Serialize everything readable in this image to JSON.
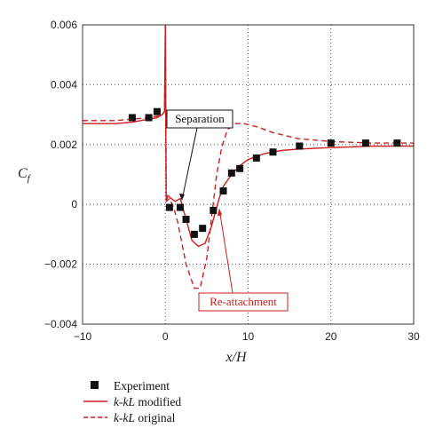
{
  "chart_data": {
    "type": "line",
    "xlabel": "x/H",
    "ylabel": "C",
    "ylabel_sub": "f",
    "xlim": [
      -10,
      30
    ],
    "ylim": [
      -0.004,
      0.006
    ],
    "xticks": [
      -10,
      0,
      10,
      20,
      30
    ],
    "yticks": [
      -0.004,
      -0.002,
      0,
      0.002,
      0.004,
      0.006
    ],
    "xtick_labels": [
      "−10",
      "0",
      "10",
      "20",
      "30"
    ],
    "ytick_labels": [
      "−0.004",
      "−0.002",
      "0",
      "0.002",
      "0.004",
      "0.006"
    ],
    "grid": "dotted",
    "series": [
      {
        "name": "Experiment",
        "kind": "markers",
        "x": [
          -4,
          -2,
          -1,
          0.5,
          1.8,
          2.5,
          3.5,
          4.5,
          5.8,
          7,
          8,
          9,
          11,
          13,
          16.2,
          20,
          24.2,
          28
        ],
        "y": [
          0.0029,
          0.0029,
          0.0031,
          -0.0001,
          -0.0001,
          -0.0005,
          -0.001,
          -0.0008,
          -0.0002,
          0.00045,
          0.00105,
          0.0012,
          0.00155,
          0.00175,
          0.00195,
          0.00205,
          0.00205,
          0.00205
        ]
      },
      {
        "name": "k-kL modified",
        "kind": "solid",
        "color": "#cc1f1f",
        "x": [
          -10,
          -6,
          -4,
          -2,
          -1,
          -0.4,
          -0.1,
          0,
          0.1,
          0.3,
          0.7,
          1.2,
          1.8,
          2.5,
          3.2,
          4,
          4.8,
          5.5,
          6,
          6.5,
          7,
          8,
          9,
          10,
          12,
          14,
          16,
          20,
          25,
          30
        ],
        "y": [
          0.0027,
          0.0027,
          0.00275,
          0.00285,
          0.0029,
          0.003,
          0.0031,
          0.006,
          0.0001,
          0.0003,
          0.0002,
          0.0001,
          0.0002,
          -0.0005,
          -0.0012,
          -0.0014,
          -0.0013,
          -0.0008,
          -0.0003,
          0.0002,
          0.0006,
          0.001,
          0.0013,
          0.0015,
          0.0017,
          0.0018,
          0.00185,
          0.0019,
          0.00195,
          0.00195
        ]
      },
      {
        "name": "k-kL original",
        "kind": "dashed",
        "color": "#cc1f1f",
        "x": [
          -10,
          -6,
          -4,
          -2,
          -1,
          -0.4,
          -0.1,
          0,
          0.1,
          0.5,
          1,
          1.5,
          2.5,
          3.5,
          4.2,
          5,
          5.6,
          6.2,
          6.8,
          7.5,
          8.5,
          9.5,
          11,
          13,
          16,
          20,
          25,
          30
        ],
        "y": [
          0.0028,
          0.0028,
          0.00285,
          0.0029,
          0.00295,
          0.003,
          0.0031,
          0.006,
          0.0001,
          0.0002,
          -0.0001,
          -0.0006,
          -0.002,
          -0.0028,
          -0.0028,
          -0.0018,
          -0.0004,
          0.001,
          0.0019,
          0.0025,
          0.0027,
          0.0027,
          0.0026,
          0.0024,
          0.0022,
          0.0021,
          0.00205,
          0.00205
        ]
      }
    ],
    "annotations": [
      {
        "text": "Separation",
        "style": "black-box",
        "target": [
          2,
          0.0001
        ]
      },
      {
        "text": "Re-attachment",
        "style": "red-box",
        "target": [
          6.3,
          0.0
        ]
      }
    ],
    "legend": {
      "placement": "below",
      "entries": [
        {
          "series": 0,
          "label": "Experiment"
        },
        {
          "series": 1,
          "label": "k-kL modified"
        },
        {
          "series": 2,
          "label": "k-kL original"
        }
      ]
    }
  }
}
